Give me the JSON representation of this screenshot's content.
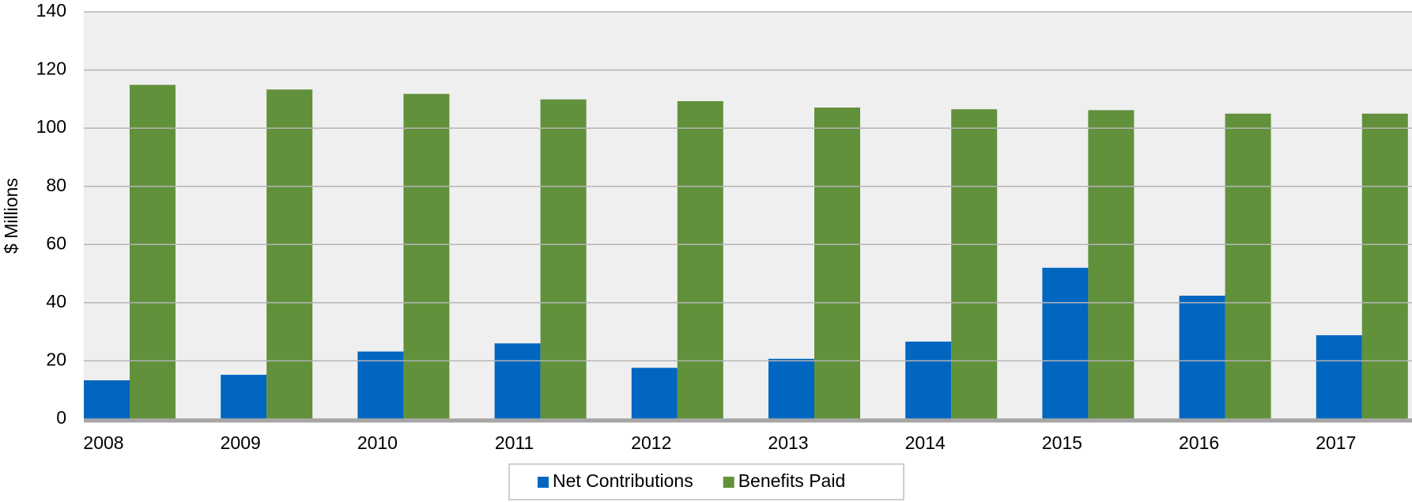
{
  "chart_data": {
    "type": "bar",
    "y_label": "$ Millions",
    "categories": [
      "2008",
      "2009",
      "2010",
      "2011",
      "2012",
      "2013",
      "2014",
      "2015",
      "2016",
      "2017"
    ],
    "series": [
      {
        "name": "Net Contributions",
        "color": "#0066c0",
        "values": [
          13.3,
          15.2,
          23.2,
          26,
          17.6,
          20.7,
          26.6,
          52,
          42.4,
          28.8
        ]
      },
      {
        "name": "Benefits Paid",
        "color": "#62913c",
        "values": [
          114.9,
          113.3,
          111.8,
          109.9,
          109.3,
          107.1,
          106.5,
          106.2,
          105,
          105
        ]
      }
    ],
    "ylim": [
      0,
      140
    ],
    "yticks": [
      0,
      20,
      40,
      60,
      80,
      100,
      120,
      140
    ],
    "grid": true,
    "legend": "bottom"
  }
}
